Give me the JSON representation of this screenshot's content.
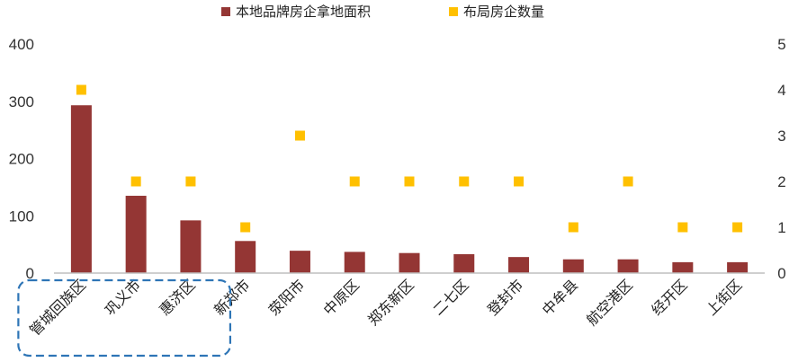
{
  "chart_data": {
    "type": "bar",
    "categories": [
      "管城回族区",
      "巩义市",
      "惠济区",
      "新郑市",
      "荥阳市",
      "中原区",
      "郑东新区",
      "二七区",
      "登封市",
      "中牟县",
      "航空港区",
      "经开区",
      "上街区"
    ],
    "series": [
      {
        "name": "本地品牌房企拿地面积",
        "type": "bar",
        "axis": "left",
        "color": "#943634",
        "values": [
          293,
          135,
          92,
          56,
          39,
          37,
          35,
          33,
          28,
          24,
          24,
          19,
          19
        ]
      },
      {
        "name": "布局房企数量",
        "type": "scatter",
        "axis": "right",
        "color": "#FFC000",
        "values": [
          4,
          2,
          2,
          1,
          3,
          2,
          2,
          2,
          2,
          1,
          2,
          1,
          1
        ]
      }
    ],
    "y_left": {
      "min": 0,
      "max": 400,
      "ticks": [
        "0",
        "100",
        "200",
        "300",
        "400"
      ]
    },
    "y_right": {
      "min": 0,
      "max": 5,
      "ticks": [
        "0",
        "1",
        "2",
        "3",
        "4",
        "5"
      ]
    },
    "legend_position": "top",
    "grid": false,
    "highlight": {
      "style": "dashed-rounded-box",
      "color": "#2E75B6",
      "categories": [
        "管城回族区",
        "巩义市",
        "惠济区"
      ]
    }
  }
}
